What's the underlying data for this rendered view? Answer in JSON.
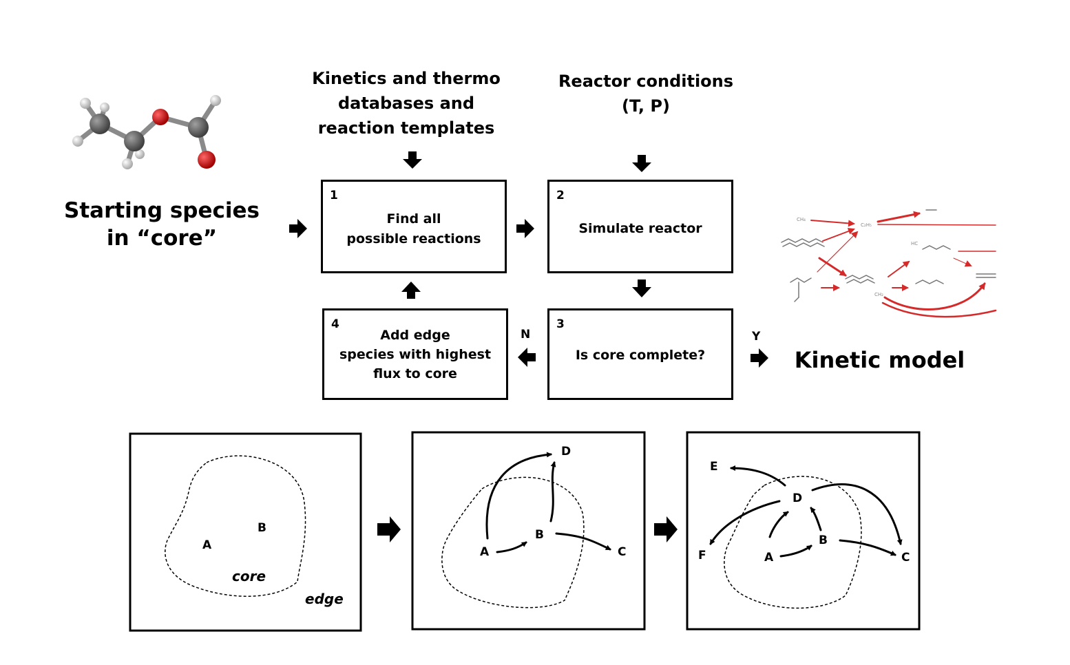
{
  "inputs": {
    "kinetics_label": "Kinetics and thermo\ndatabases and\nreaction templates",
    "reactor_label": "Reactor conditions\n(T, P)"
  },
  "starting": {
    "label": "Starting species\nin “core”"
  },
  "steps": [
    {
      "num": "1",
      "label": "Find all\npossible reactions"
    },
    {
      "num": "2",
      "label": "Simulate reactor"
    },
    {
      "num": "3",
      "label": "Is core complete?"
    },
    {
      "num": "4",
      "label": "Add edge\nspecies with highest\nflux to core"
    }
  ],
  "branches": {
    "no": "N",
    "yes": "Y"
  },
  "output": {
    "label": "Kinetic model"
  },
  "panels": {
    "panel1": {
      "a": "A",
      "b": "B",
      "core": "core",
      "edge": "edge"
    },
    "panel2": {
      "a": "A",
      "b": "B",
      "c": "C",
      "d": "D"
    },
    "panel3": {
      "a": "A",
      "b": "B",
      "c": "C",
      "d": "D",
      "e": "E",
      "f": "F"
    }
  },
  "colors": {
    "network_red": "#d42a2a",
    "oxygen": "#d11a1a",
    "carbon": "#606060",
    "hydrogen": "#e4e4e4"
  }
}
